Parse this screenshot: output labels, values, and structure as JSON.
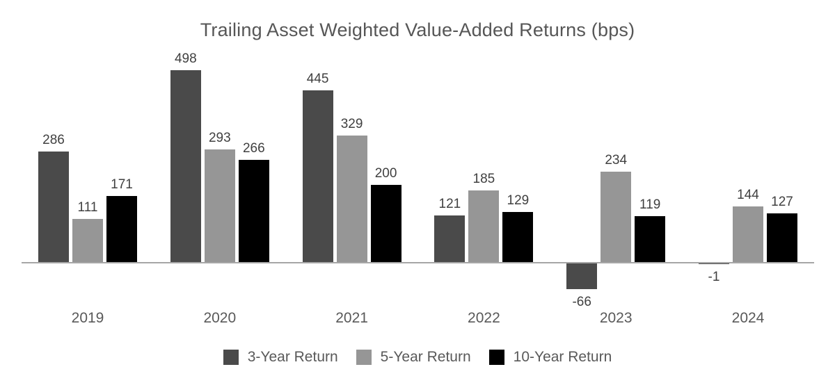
{
  "chart_data": {
    "type": "bar",
    "title": "Trailing Asset Weighted Value-Added Returns (bps)",
    "categories": [
      "2019",
      "2020",
      "2021",
      "2022",
      "2023",
      "2024"
    ],
    "series": [
      {
        "name": "3-Year Return",
        "color": "#4a4a4a",
        "values": [
          286,
          498,
          445,
          121,
          -66,
          -1
        ]
      },
      {
        "name": "5-Year Return",
        "color": "#969696",
        "values": [
          111,
          293,
          329,
          185,
          234,
          144
        ]
      },
      {
        "name": "10-Year Return",
        "color": "#000000",
        "values": [
          171,
          266,
          200,
          129,
          119,
          127
        ]
      }
    ],
    "unit": "bps",
    "data_labels": true,
    "grid": false,
    "legend_position": "bottom",
    "axis_line_color": "#a6a6a6",
    "value_label_color": "#404040",
    "category_label_color": "#595959",
    "title_color": "#565656",
    "ylim": [
      -100,
      520
    ]
  }
}
